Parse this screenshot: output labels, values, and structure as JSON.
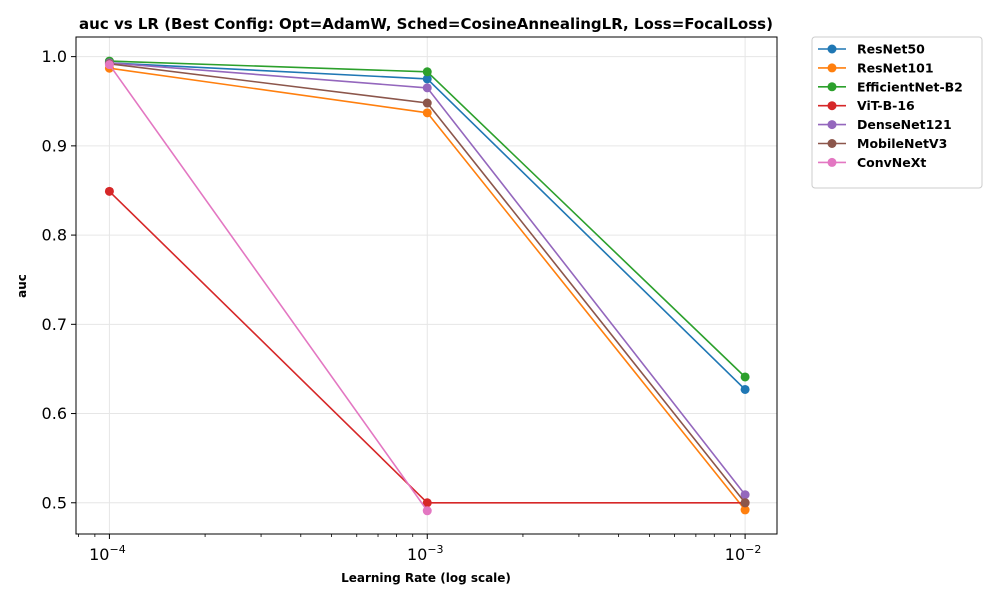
{
  "chart_data": {
    "type": "line",
    "title": "auc vs LR (Best Config: Opt=AdamW, Sched=CosineAnnealingLR, Loss=FocalLoss)",
    "xlabel": "Learning Rate (log scale)",
    "ylabel": "auc",
    "x_scale": "log",
    "x": [
      0.0001,
      0.001,
      0.01
    ],
    "x_tick_labels": [
      {
        "base": "10",
        "exp": "−4"
      },
      {
        "base": "10",
        "exp": "−3"
      },
      {
        "base": "10",
        "exp": "−2"
      }
    ],
    "y_ticks": [
      "0.5",
      "0.6",
      "0.7",
      "0.8",
      "0.9",
      "1.0"
    ],
    "ylim": [
      0.465,
      1.022
    ],
    "grid": true,
    "legend_position": "outside-top-right",
    "series": [
      {
        "name": "ResNet50",
        "color": "#1f77b4",
        "values": [
          0.993,
          0.975,
          0.627
        ]
      },
      {
        "name": "ResNet101",
        "color": "#ff7f0e",
        "values": [
          0.987,
          0.937,
          0.492
        ]
      },
      {
        "name": "EfficientNet-B2",
        "color": "#2ca02c",
        "values": [
          0.995,
          0.983,
          0.641
        ]
      },
      {
        "name": "ViT-B-16",
        "color": "#d62728",
        "values": [
          0.849,
          0.5,
          0.5
        ]
      },
      {
        "name": "DenseNet121",
        "color": "#9467bd",
        "values": [
          0.993,
          0.965,
          0.509
        ]
      },
      {
        "name": "MobileNetV3",
        "color": "#8c564b",
        "values": [
          0.992,
          0.948,
          0.5
        ]
      },
      {
        "name": "ConvNeXt",
        "color": "#e377c2",
        "values": [
          0.991,
          0.491,
          null
        ]
      }
    ]
  }
}
